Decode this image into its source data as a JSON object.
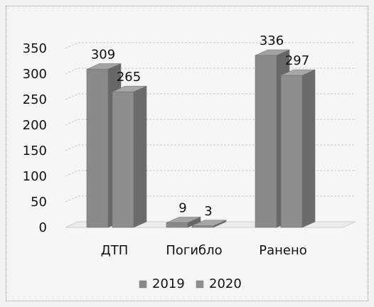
{
  "chart_data": {
    "type": "bar",
    "categories": [
      "ДТП",
      "Погибло",
      "Ранено"
    ],
    "series": [
      {
        "values": [
          309,
          9,
          336
        ]
      },
      {
        "values": [
          265,
          3,
          297
        ]
      }
    ],
    "ylim": [
      0,
      350
    ],
    "y_ticks": [
      0,
      50,
      100,
      150,
      200,
      250,
      300,
      350
    ],
    "legend": {
      "position": "bottom",
      "entries": [
        "2019",
        "2020"
      ]
    },
    "grid": true,
    "style": "3d-columns",
    "colors": [
      "#8a8a8a",
      "#8e8e8e"
    ]
  }
}
